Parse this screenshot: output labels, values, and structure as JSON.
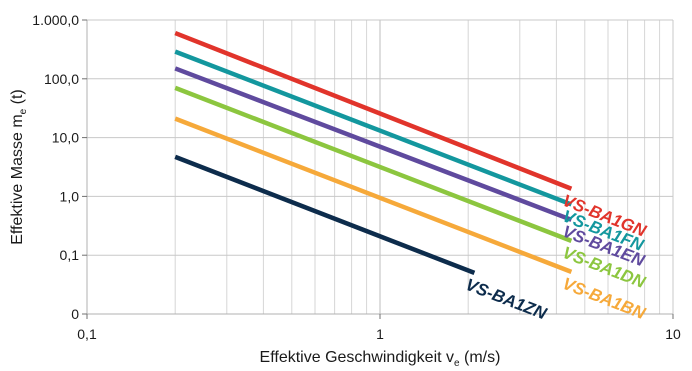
{
  "chart_data": {
    "type": "line",
    "x_scale": "log",
    "y_scale": "log",
    "xlim": [
      0.1,
      10
    ],
    "ylim": [
      0.01,
      1000
    ],
    "grid": true,
    "xlabel": {
      "main": "Effektive Geschwindigkeit v",
      "sub": "e",
      "unit": " (m/s)"
    },
    "ylabel": {
      "main": "Effektive Masse m",
      "sub": "e",
      "unit": " (t)"
    },
    "x_ticks": [
      {
        "value": 0.1,
        "label": "0,1"
      },
      {
        "value": 1,
        "label": "1"
      },
      {
        "value": 10,
        "label": "10"
      }
    ],
    "y_ticks": [
      {
        "value": 0.01,
        "label": "0"
      },
      {
        "value": 0.1,
        "label": "0,1"
      },
      {
        "value": 1,
        "label": "1,0"
      },
      {
        "value": 10,
        "label": "10,0"
      },
      {
        "value": 100,
        "label": "100,0"
      },
      {
        "value": 1000,
        "label": "1.000,0"
      }
    ],
    "series": [
      {
        "name": "VS-BA1GN",
        "color": "#e1342b",
        "x": [
          0.2,
          4.5
        ],
        "y": [
          600,
          1.35
        ]
      },
      {
        "name": "VS-BA1FN",
        "color": "#13979e",
        "x": [
          0.2,
          4.5
        ],
        "y": [
          290,
          0.73
        ]
      },
      {
        "name": "VS-BA1EN",
        "color": "#5f4a9e",
        "x": [
          0.2,
          4.5
        ],
        "y": [
          150,
          0.4
        ]
      },
      {
        "name": "VS-BA1DN",
        "color": "#8cc63f",
        "x": [
          0.2,
          4.5
        ],
        "y": [
          70,
          0.175
        ]
      },
      {
        "name": "VS-BA1BN",
        "color": "#f6a93a",
        "x": [
          0.2,
          4.5
        ],
        "y": [
          21,
          0.052
        ]
      },
      {
        "name": "VS-BA1ZN",
        "color": "#0d2c4c",
        "x": [
          0.2,
          2.1
        ],
        "y": [
          4.7,
          0.05
        ]
      }
    ]
  }
}
